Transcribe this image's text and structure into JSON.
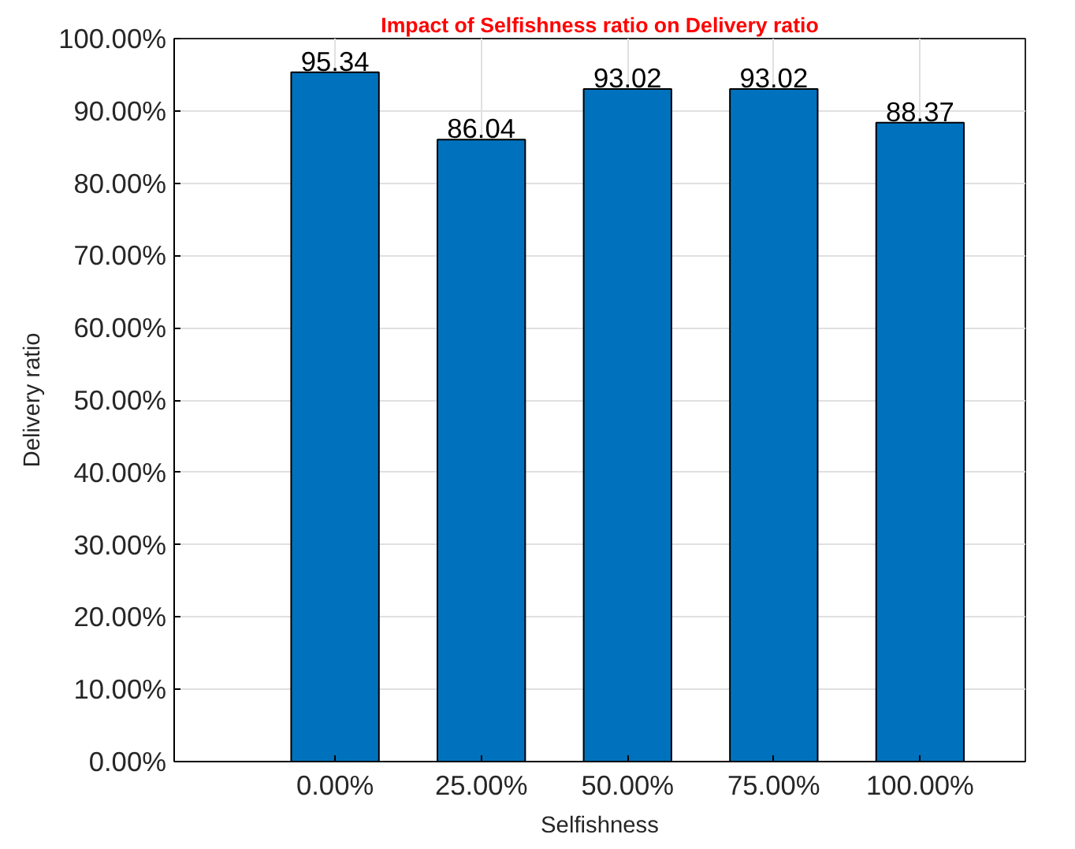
{
  "chart_data": {
    "type": "bar",
    "title": "Impact of Selfishness ratio on Delivery ratio",
    "xlabel": "Selfishness",
    "ylabel": "Delivery ratio",
    "x": [
      0,
      25,
      50,
      75,
      100
    ],
    "series": [
      {
        "color": "#0072bd",
        "values": [
          95.34,
          86.04,
          93.02,
          93.02,
          88.37
        ]
      }
    ],
    "data_labels": true,
    "xlim": [
      -27.5,
      118
    ],
    "xticks": [
      {
        "value": 0,
        "label": "0.00%"
      },
      {
        "value": 25,
        "label": "25.00%"
      },
      {
        "value": 50,
        "label": "50.00%"
      },
      {
        "value": 75,
        "label": "75.00%"
      },
      {
        "value": 100,
        "label": "100.00%"
      }
    ],
    "ylim": [
      0,
      100
    ],
    "yticks": [
      {
        "value": 0,
        "label": "0.00%"
      },
      {
        "value": 10,
        "label": "10.00%"
      },
      {
        "value": 20,
        "label": "20.00%"
      },
      {
        "value": 30,
        "label": "30.00%"
      },
      {
        "value": 40,
        "label": "40.00%"
      },
      {
        "value": 50,
        "label": "50.00%"
      },
      {
        "value": 60,
        "label": "60.00%"
      },
      {
        "value": 70,
        "label": "70.00%"
      },
      {
        "value": 80,
        "label": "80.00%"
      },
      {
        "value": 90,
        "label": "90.00%"
      },
      {
        "value": 100,
        "label": "100.00%"
      }
    ],
    "grid": true
  }
}
